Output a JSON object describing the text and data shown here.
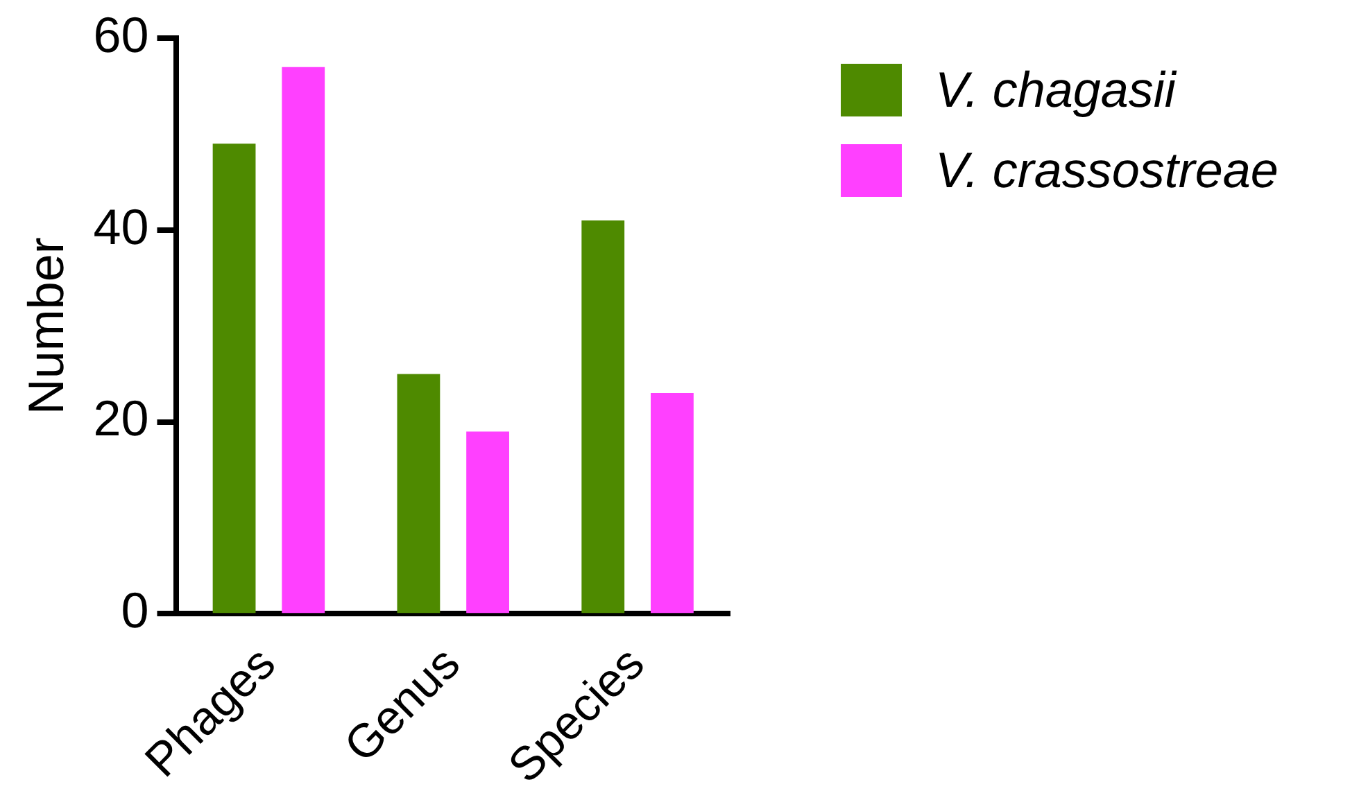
{
  "chart_data": {
    "type": "bar",
    "ylabel": "Number",
    "categories": [
      "Phages",
      "Genus",
      "Species"
    ],
    "series": [
      {
        "name": "V. chagasii",
        "color": "#4e8a00",
        "values": [
          49,
          25,
          41
        ]
      },
      {
        "name": "V. crassostreae",
        "color": "#ff40ff",
        "values": [
          57,
          19,
          23
        ]
      }
    ],
    "ylim": [
      0,
      60
    ],
    "yticks": [
      0,
      20,
      40,
      60
    ],
    "grid": false,
    "legend": "top right"
  }
}
